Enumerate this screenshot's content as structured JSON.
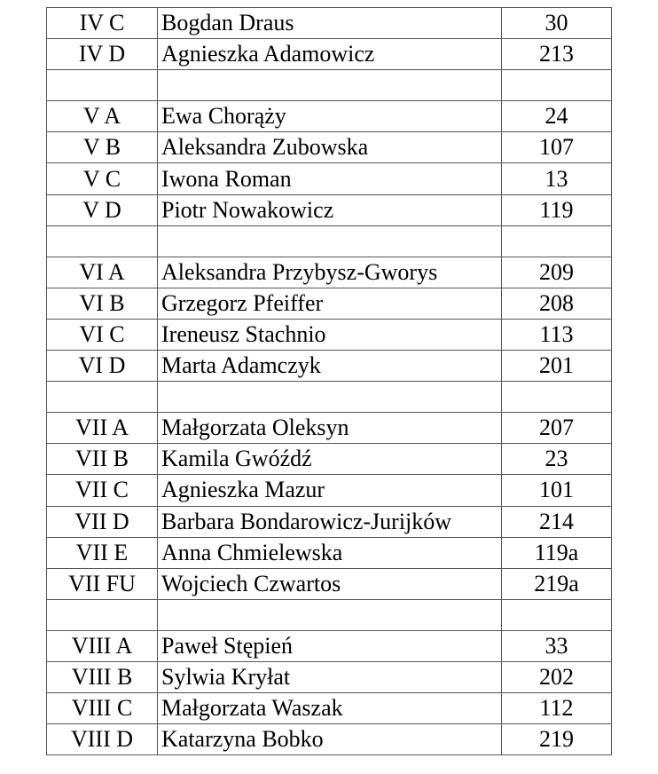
{
  "table": {
    "rows": [
      {
        "class": "IV C",
        "teacher": "Bogdan Draus",
        "room": "30"
      },
      {
        "class": "IV D",
        "teacher": "Agnieszka Adamowicz",
        "room": "213"
      },
      {
        "class": "",
        "teacher": "",
        "room": ""
      },
      {
        "class": "V A",
        "teacher": "Ewa Chorąży",
        "room": "24"
      },
      {
        "class": "V B",
        "teacher": "Aleksandra Zubowska",
        "room": "107"
      },
      {
        "class": "V C",
        "teacher": "Iwona Roman",
        "room": "13"
      },
      {
        "class": "V D",
        "teacher": "Piotr Nowakowicz",
        "room": "119"
      },
      {
        "class": "",
        "teacher": "",
        "room": ""
      },
      {
        "class": "VI A",
        "teacher": "Aleksandra  Przybysz-Gworys",
        "room": "209"
      },
      {
        "class": "VI B",
        "teacher": "Grzegorz Pfeiffer",
        "room": "208"
      },
      {
        "class": "VI C",
        "teacher": "Ireneusz Stachnio",
        "room": "113"
      },
      {
        "class": "VI D",
        "teacher": "Marta Adamczyk",
        "room": "201"
      },
      {
        "class": "",
        "teacher": "",
        "room": ""
      },
      {
        "class": "VII A",
        "teacher": "Małgorzata Oleksyn",
        "room": "207"
      },
      {
        "class": "VII B",
        "teacher": "Kamila Gwóźdź",
        "room": "23"
      },
      {
        "class": "VII C",
        "teacher": "Agnieszka Mazur",
        "room": "101"
      },
      {
        "class": "VII D",
        "teacher": "Barbara Bondarowicz-Jurijków",
        "room": "214"
      },
      {
        "class": "VII E",
        "teacher": "Anna Chmielewska",
        "room": "119a"
      },
      {
        "class": "VII FU",
        "teacher": "Wojciech Czwartos",
        "room": "219a"
      },
      {
        "class": "",
        "teacher": "",
        "room": ""
      },
      {
        "class": "VIII A",
        "teacher": "Paweł Stępień",
        "room": "33"
      },
      {
        "class": "VIII B",
        "teacher": "Sylwia Kryłat",
        "room": "202"
      },
      {
        "class": "VIII C",
        "teacher": "Małgorzata Waszak",
        "room": "112"
      },
      {
        "class": "VIII D",
        "teacher": "Katarzyna Bobko",
        "room": "219"
      }
    ]
  }
}
